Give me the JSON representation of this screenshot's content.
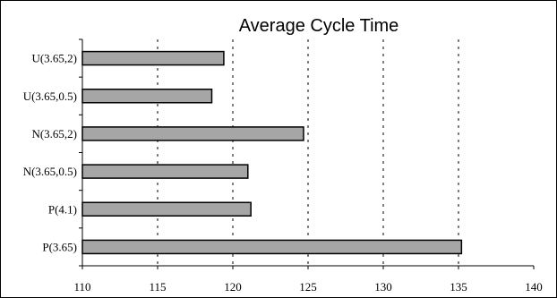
{
  "chart_data": {
    "type": "bar",
    "orientation": "horizontal",
    "title": "Average Cycle Time",
    "xlabel": "",
    "ylabel": "",
    "categories": [
      "P(3.65)",
      "P(4.1)",
      "N(3.65,0.5)",
      "N(3.65,2)",
      "U(3.65,0.5)",
      "U(3.65,2)"
    ],
    "values": [
      135.2,
      121.2,
      121.0,
      124.7,
      118.6,
      119.4
    ],
    "xlim": [
      110,
      140
    ],
    "xticks": [
      "110",
      "115",
      "120",
      "125",
      "130",
      "135",
      "140"
    ],
    "grid": "vertical dashed",
    "legend": "none",
    "colors": {
      "bar": "#a6a6a6",
      "bar_edge": "#000000",
      "grid": "#000000",
      "axis": "#000000",
      "border": "#000000"
    }
  }
}
